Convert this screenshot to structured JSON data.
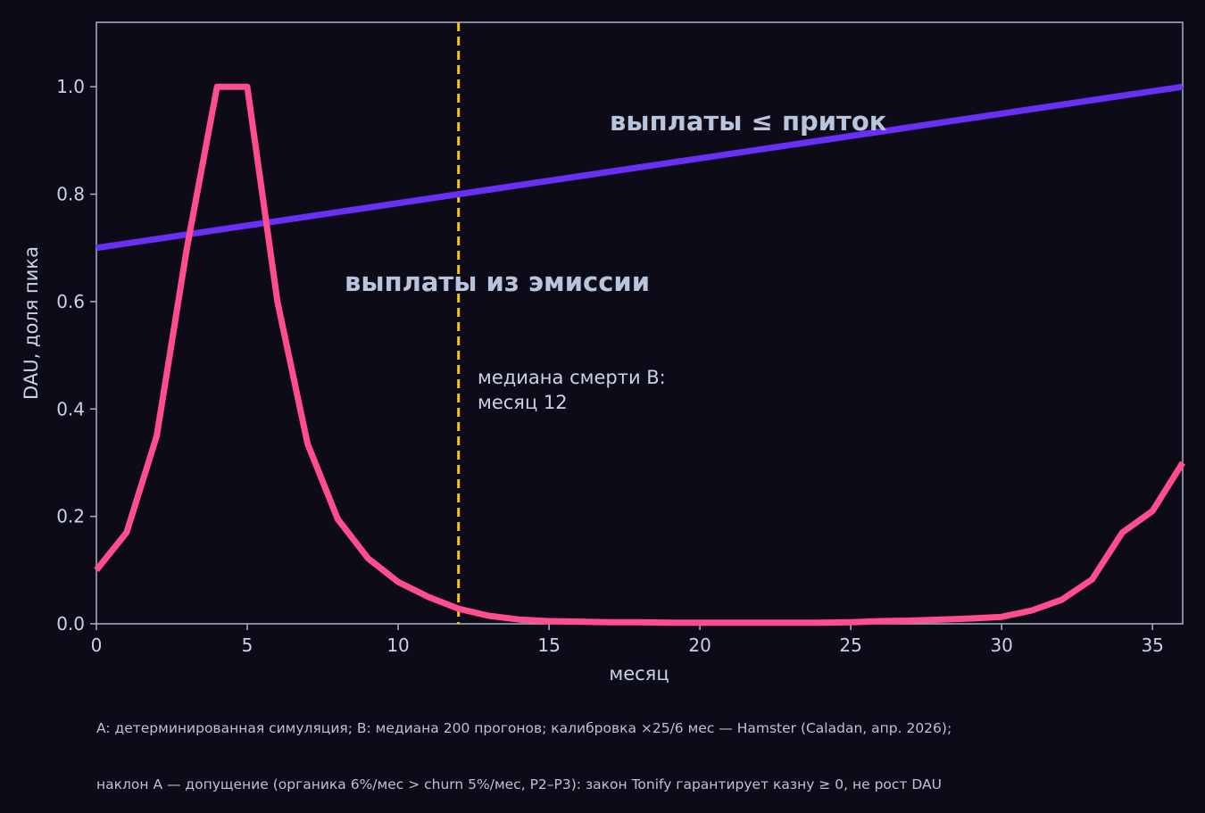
{
  "chart_data": {
    "type": "line",
    "xlabel": "месяц",
    "ylabel": "DAU, доля пика",
    "xlim": [
      0,
      36
    ],
    "ylim": [
      0,
      1.12
    ],
    "xticks": [
      0,
      5,
      10,
      15,
      20,
      25,
      30,
      35
    ],
    "yticks": [
      0.0,
      0.2,
      0.4,
      0.6,
      0.8,
      1.0
    ],
    "ytick_labels": [
      "0.0",
      "0.2",
      "0.4",
      "0.6",
      "0.8",
      "1.0"
    ],
    "grid": false,
    "series": [
      {
        "key": "A",
        "color": "#6a2ff6",
        "x": [
          0,
          36
        ],
        "values": [
          0.7,
          1.0
        ]
      },
      {
        "key": "B",
        "color": "#ff4d8d",
        "x": [
          0,
          1,
          2,
          3,
          4,
          5,
          6,
          7,
          8,
          9,
          10,
          11,
          12,
          13,
          14,
          15,
          16,
          17,
          18,
          19,
          20,
          21,
          22,
          23,
          24,
          25,
          26,
          27,
          28,
          29,
          30,
          31,
          32,
          33,
          34,
          35,
          36
        ],
        "values": [
          0.1,
          0.17,
          0.35,
          0.7,
          1.0,
          1.0,
          0.6,
          0.335,
          0.195,
          0.122,
          0.078,
          0.05,
          0.028,
          0.015,
          0.008,
          0.005,
          0.004,
          0.003,
          0.003,
          0.002,
          0.002,
          0.002,
          0.002,
          0.002,
          0.002,
          0.003,
          0.005,
          0.006,
          0.008,
          0.01,
          0.013,
          0.025,
          0.045,
          0.083,
          0.17,
          0.21,
          0.3
        ]
      }
    ],
    "vline": {
      "x": 12,
      "color": "#f5c518"
    },
    "annotations": {
      "upper_region": "выплаты ≤ приток",
      "lower_region": "выплаты из эмиссии",
      "median_line1": "медиана смерти B:",
      "median_line2": "месяц 12"
    }
  },
  "footnote": {
    "line1": "A: детерминированная симуляция; B: медиана 200 прогонов; калибровка ×25/6 мес — Hamster (Caladan, апр. 2026);",
    "line2": "наклон A — допущение (органика 6%/мес > churn 5%/мес, P2–P3): закон Tonify гарантирует казну ≥ 0, не рост DAU"
  },
  "colors": {
    "background": "#0d0b18",
    "axis": "#a8b3c9",
    "text": "#c9d3e6"
  }
}
